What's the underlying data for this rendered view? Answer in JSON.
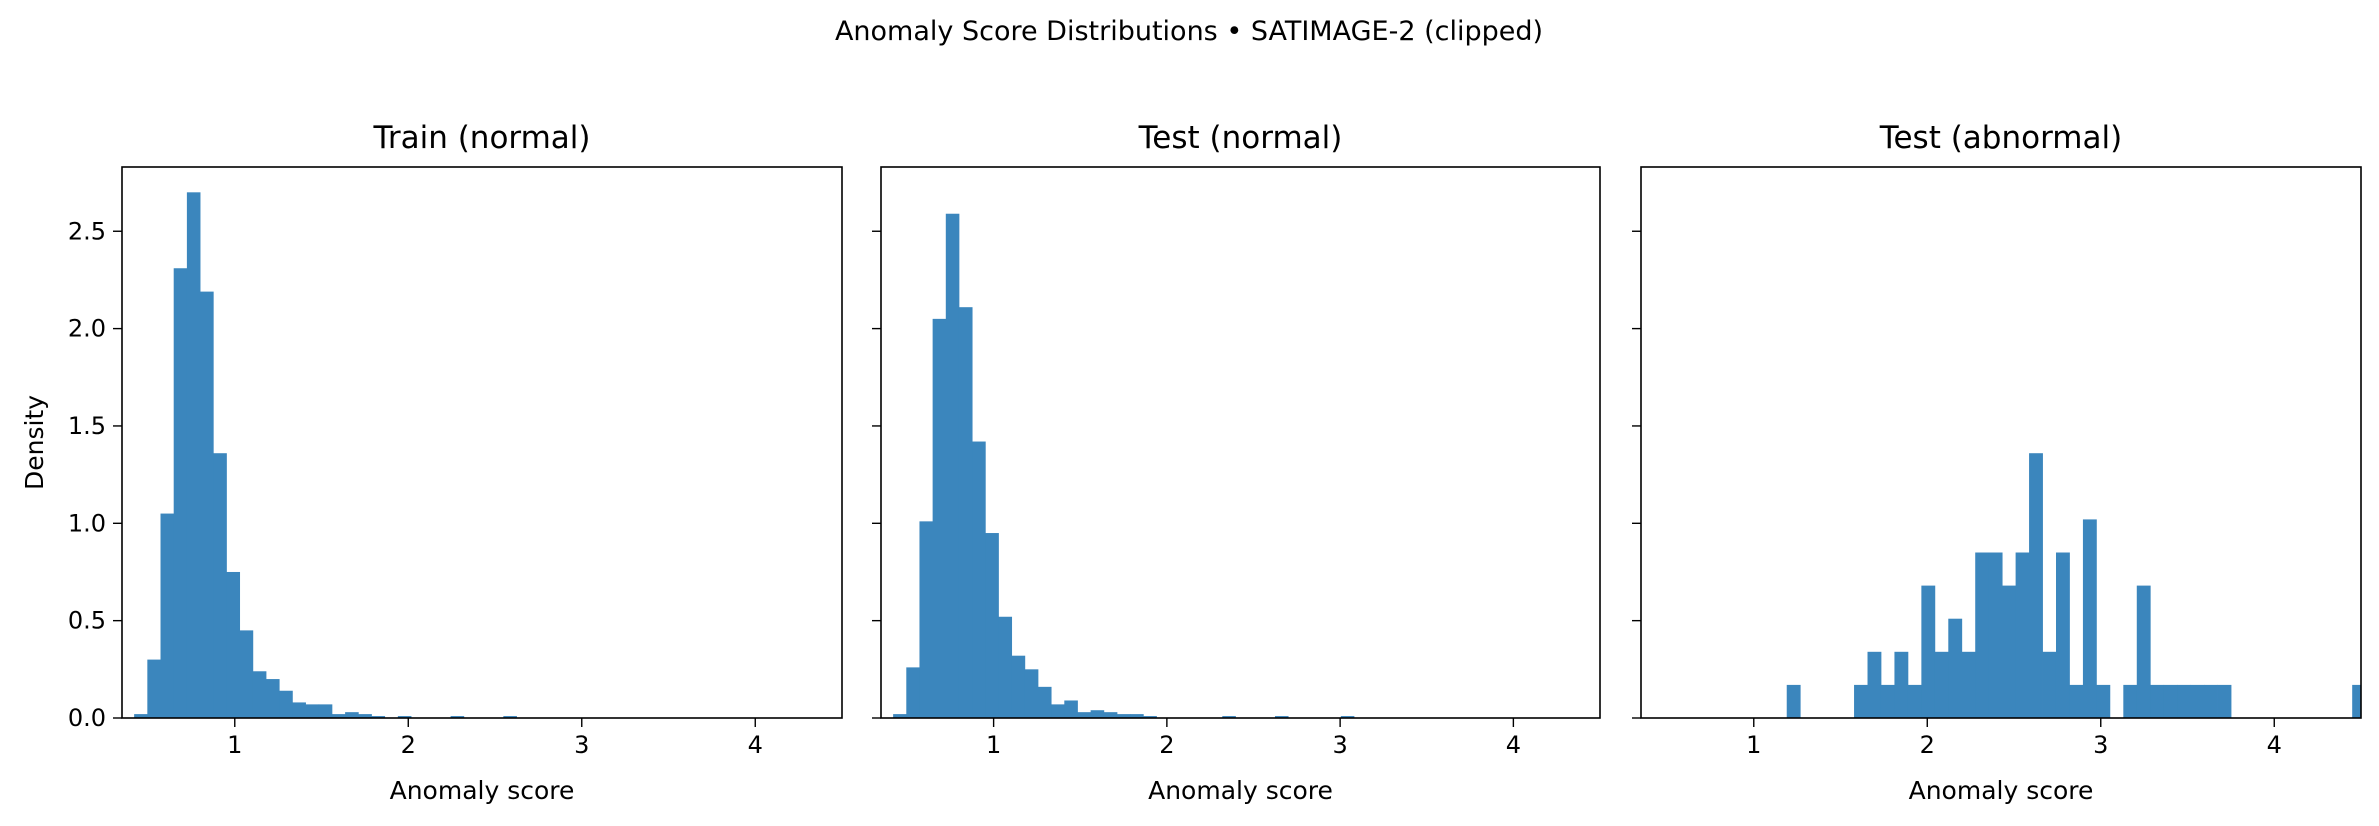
{
  "figure_title": "Anomaly Score Distributions • SATIMAGE-2 (clipped)",
  "colors": {
    "bar": "#3b86bd",
    "axis": "#000000",
    "background": "#ffffff"
  },
  "chart_data": [
    {
      "type": "bar",
      "title": "Train (normal)",
      "xlabel": "Anomaly score",
      "ylabel": "Density",
      "xlim": [
        0.35,
        4.5
      ],
      "ylim": [
        0,
        2.83
      ],
      "xticks": [
        1,
        2,
        3,
        4
      ],
      "yticks": [
        0.0,
        0.5,
        1.0,
        1.5,
        2.0,
        2.5
      ],
      "ytick_labels": [
        "0.0",
        "0.5",
        "1.0",
        "1.5",
        "2.0",
        "2.5"
      ],
      "bin_start": 0.42,
      "bin_width": 0.076,
      "values": [
        0.02,
        0.3,
        1.05,
        2.31,
        2.7,
        2.19,
        1.36,
        0.75,
        0.45,
        0.24,
        0.2,
        0.14,
        0.08,
        0.07,
        0.07,
        0.02,
        0.03,
        0.02,
        0.01,
        0.0,
        0.01,
        0.0,
        0.0,
        0.0,
        0.01,
        0.0,
        0.0,
        0.0,
        0.01,
        0.0,
        0.0,
        0.0,
        0.0,
        0.0,
        0.0,
        0.0,
        0.0,
        0.0,
        0.0,
        0.0,
        0.0,
        0.0,
        0.0,
        0.0,
        0.0,
        0.0,
        0.0,
        0.0,
        0.0,
        0.0
      ]
    },
    {
      "type": "bar",
      "title": "Test (normal)",
      "xlabel": "Anomaly score",
      "ylabel": "",
      "xlim": [
        0.35,
        4.5
      ],
      "ylim": [
        0,
        2.83
      ],
      "xticks": [
        1,
        2,
        3,
        4
      ],
      "yticks": [
        0.0,
        0.5,
        1.0,
        1.5,
        2.0,
        2.5
      ],
      "ytick_labels": [],
      "bin_start": 0.42,
      "bin_width": 0.076,
      "values": [
        0.02,
        0.26,
        1.01,
        2.05,
        2.59,
        2.11,
        1.42,
        0.95,
        0.52,
        0.32,
        0.25,
        0.16,
        0.07,
        0.09,
        0.03,
        0.04,
        0.03,
        0.02,
        0.02,
        0.01,
        0.0,
        0.0,
        0.0,
        0.0,
        0.0,
        0.01,
        0.0,
        0.0,
        0.0,
        0.01,
        0.0,
        0.0,
        0.0,
        0.0,
        0.01,
        0.0,
        0.0,
        0.0,
        0.0,
        0.0,
        0.0,
        0.0,
        0.0,
        0.0,
        0.0,
        0.0,
        0.0,
        0.0,
        0.0,
        0.0
      ]
    },
    {
      "type": "bar",
      "title": "Test (abnormal)",
      "xlabel": "Anomaly score",
      "ylabel": "",
      "xlim": [
        0.35,
        4.5
      ],
      "ylim": [
        0,
        2.83
      ],
      "xticks": [
        1,
        2,
        3,
        4
      ],
      "yticks": [
        0.0,
        0.5,
        1.0,
        1.5,
        2.0,
        2.5
      ],
      "ytick_labels": [],
      "bin_start": 1.19,
      "bin_width": 0.0776,
      "values": [
        0.17,
        0.0,
        0.0,
        0.0,
        0.0,
        0.17,
        0.34,
        0.17,
        0.34,
        0.17,
        0.68,
        0.34,
        0.51,
        0.34,
        0.85,
        0.85,
        0.68,
        0.85,
        1.36,
        0.34,
        0.85,
        0.17,
        1.02,
        0.17,
        0.0,
        0.17,
        0.68,
        0.17,
        0.17,
        0.17,
        0.17,
        0.17,
        0.17,
        0.0,
        0.0,
        0.0,
        0.0,
        0.0,
        0.0,
        0.0,
        0.0,
        0.0,
        0.17
      ]
    }
  ]
}
